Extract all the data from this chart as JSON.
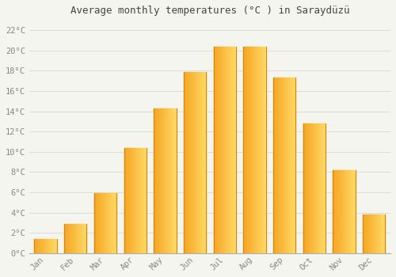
{
  "title": "Average monthly temperatures (°C ) in Saraydüzü",
  "months": [
    "Jan",
    "Feb",
    "Mar",
    "Apr",
    "May",
    "Jun",
    "Jul",
    "Aug",
    "Sep",
    "Oct",
    "Nov",
    "Dec"
  ],
  "values": [
    1.4,
    2.9,
    5.9,
    10.4,
    14.3,
    17.9,
    20.4,
    20.4,
    17.3,
    12.8,
    8.2,
    3.8
  ],
  "bar_color_left": "#F5A623",
  "bar_color_right": "#FFD966",
  "bar_edge_color": "#D4870A",
  "background_color": "#F5F5F0",
  "plot_bg_color": "#F5F5F0",
  "grid_color": "#DDDDDD",
  "tick_label_color": "#888888",
  "title_color": "#444444",
  "ylim": [
    0,
    23
  ],
  "yticks": [
    0,
    2,
    4,
    6,
    8,
    10,
    12,
    14,
    16,
    18,
    20,
    22
  ],
  "ytick_labels": [
    "0°C",
    "2°C",
    "4°C",
    "6°C",
    "8°C",
    "10°C",
    "12°C",
    "14°C",
    "16°C",
    "18°C",
    "20°C",
    "22°C"
  ],
  "title_fontsize": 9,
  "tick_fontsize": 7.5,
  "bar_width": 0.75,
  "figsize": [
    5.0,
    3.5
  ],
  "dpi": 100
}
